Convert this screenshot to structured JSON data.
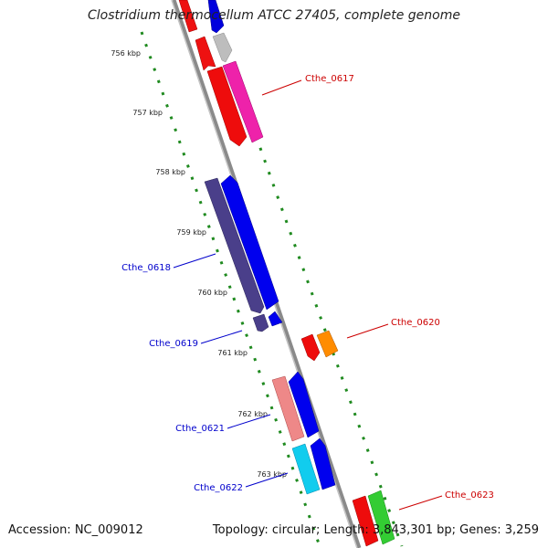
{
  "title": "Clostridium thermocellum ATCC 27405, complete genome",
  "footer": {
    "accession": "Accession: NC_009012",
    "summary": "Topology: circular; Length: 3,843,301 bp; Genes: 3,259"
  },
  "ruler": {
    "unit": "kbp",
    "labels": [
      "756 kbp",
      "757 kbp",
      "758 kbp",
      "759 kbp",
      "760 kbp",
      "761 kbp",
      "762 kbp",
      "763 kbp"
    ]
  },
  "gene_labels": [
    {
      "text": "Cthe_0617",
      "color": "#cc0000"
    },
    {
      "text": "Cthe_0618",
      "color": "#0000cc"
    },
    {
      "text": "Cthe_0619",
      "color": "#0000cc"
    },
    {
      "text": "Cthe_0620",
      "color": "#cc0000"
    },
    {
      "text": "Cthe_0621",
      "color": "#0000cc"
    },
    {
      "text": "Cthe_0622",
      "color": "#0000cc"
    },
    {
      "text": "Cthe_0623",
      "color": "#cc0000"
    }
  ],
  "colors": {
    "backbone": "#8a8a8a",
    "ruler": "#1f8a1f",
    "label_red": "#cc0000",
    "label_blue": "#0000cc"
  }
}
